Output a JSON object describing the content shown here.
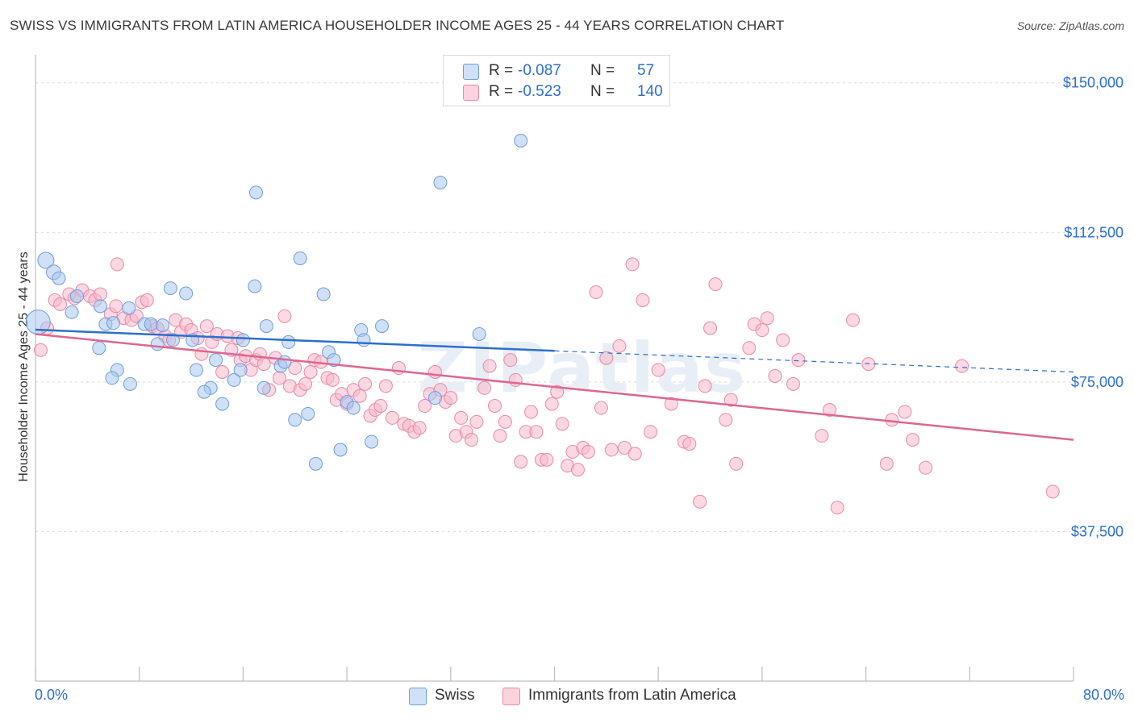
{
  "title": "SWISS VS IMMIGRANTS FROM LATIN AMERICA HOUSEHOLDER INCOME AGES 25 - 44 YEARS CORRELATION CHART",
  "source": "Source: ZipAtlas.com",
  "watermark": "ZIPatlas",
  "legend": {
    "rows": [
      {
        "r_label": "R =",
        "r_value": "-0.087",
        "n_label": "N =",
        "n_value": "57",
        "color": "#a9c7ef"
      },
      {
        "r_label": "R =",
        "r_value": "-0.523",
        "n_label": "N =",
        "n_value": "140",
        "color": "#f7b8cb"
      }
    ]
  },
  "bottom_legend": [
    "Swiss",
    "Immigrants from Latin America"
  ],
  "colors": {
    "swiss_fill": "#a9c7ef",
    "swiss_stroke": "#6c9fdc",
    "swiss_line": "#2c6fd1",
    "latin_fill": "#f7b8cb",
    "latin_stroke": "#e98aa8",
    "latin_line": "#e06690",
    "tick_label": "#2c6fd1",
    "grid": "#d9d9d9"
  },
  "chart_data": {
    "type": "scatter",
    "title": "SWISS VS IMMIGRANTS FROM LATIN AMERICA HOUSEHOLDER INCOME AGES 25 - 44 YEARS CORRELATION CHART",
    "xlabel": "",
    "ylabel": "Householder Income Ages 25 - 44 years",
    "xlim": [
      0,
      80
    ],
    "ylim": [
      0,
      155000
    ],
    "x_tick_labels": [
      "0.0%",
      "80.0%"
    ],
    "y_ticks": [
      37500,
      75000,
      112500,
      150000
    ],
    "y_tick_labels": [
      "$37,500",
      "$75,000",
      "$112,500",
      "$150,000"
    ],
    "grid": "horizontal dashed",
    "series": [
      {
        "name": "Swiss",
        "r": -0.087,
        "n": 57,
        "trend": {
          "x0": 0,
          "y0": 88100,
          "x1": 40,
          "y1": 82800,
          "dash_to_x": 80,
          "dash_to_y": 77500
        },
        "points": [
          [
            0.2,
            90000,
            28
          ],
          [
            0.8,
            105500,
            18
          ],
          [
            1.4,
            102500,
            16
          ],
          [
            1.8,
            101000,
            14
          ],
          [
            3.2,
            96500,
            14
          ],
          [
            2.8,
            92500,
            14
          ],
          [
            5.0,
            94000,
            14
          ],
          [
            7.2,
            93500,
            14
          ],
          [
            5.4,
            89500,
            14
          ],
          [
            6.0,
            89800,
            14
          ],
          [
            8.4,
            89500,
            14
          ],
          [
            8.9,
            89500,
            14
          ],
          [
            9.8,
            89200,
            14
          ],
          [
            10.4,
            98500,
            14
          ],
          [
            11.6,
            97200,
            14
          ],
          [
            4.9,
            83500,
            14
          ],
          [
            9.4,
            84500,
            14
          ],
          [
            10.6,
            85500,
            14
          ],
          [
            12.1,
            85500,
            14
          ],
          [
            6.3,
            78000,
            14
          ],
          [
            5.9,
            76000,
            14
          ],
          [
            7.3,
            74500,
            14
          ],
          [
            12.4,
            78000,
            14
          ],
          [
            13.5,
            73500,
            14
          ],
          [
            13.0,
            72500,
            14
          ],
          [
            13.9,
            80500,
            14
          ],
          [
            15.3,
            75500,
            14
          ],
          [
            14.4,
            69500,
            14
          ],
          [
            15.8,
            78000,
            14
          ],
          [
            16.0,
            85500,
            14
          ],
          [
            17.0,
            122500,
            14
          ],
          [
            16.9,
            99000,
            14
          ],
          [
            17.8,
            89000,
            14
          ],
          [
            17.6,
            73500,
            14
          ],
          [
            18.9,
            79000,
            14
          ],
          [
            19.2,
            80000,
            14
          ],
          [
            19.5,
            85000,
            14
          ],
          [
            20.4,
            106000,
            14
          ],
          [
            20.0,
            65500,
            14
          ],
          [
            21.0,
            67000,
            14
          ],
          [
            21.6,
            54500,
            14
          ],
          [
            22.2,
            97000,
            14
          ],
          [
            22.6,
            82500,
            14
          ],
          [
            23.0,
            80500,
            14
          ],
          [
            23.5,
            58000,
            14
          ],
          [
            24.0,
            70000,
            14
          ],
          [
            24.5,
            68500,
            14
          ],
          [
            25.1,
            88000,
            14
          ],
          [
            25.3,
            85500,
            14
          ],
          [
            25.9,
            60000,
            14
          ],
          [
            26.7,
            89000,
            14
          ],
          [
            30.8,
            71000,
            14
          ],
          [
            31.2,
            125000,
            14
          ],
          [
            34.2,
            87000,
            14
          ],
          [
            37.4,
            135500,
            14
          ]
        ]
      },
      {
        "name": "Immigrants from Latin America",
        "r": -0.523,
        "n": 140,
        "trend": {
          "x0": 0,
          "y0": 87000,
          "x1": 80,
          "y1": 60500
        },
        "points": [
          [
            0.4,
            83000,
            14
          ],
          [
            0.9,
            88500,
            14
          ],
          [
            1.5,
            95500,
            14
          ],
          [
            1.9,
            94500,
            14
          ],
          [
            2.6,
            97000,
            14
          ],
          [
            3.0,
            96000,
            14
          ],
          [
            3.6,
            98000,
            14
          ],
          [
            4.2,
            96500,
            14
          ],
          [
            4.6,
            95500,
            14
          ],
          [
            5.0,
            97000,
            14
          ],
          [
            5.8,
            92000,
            14
          ],
          [
            6.2,
            94000,
            14
          ],
          [
            6.3,
            104500,
            14
          ],
          [
            6.8,
            91000,
            14
          ],
          [
            7.4,
            90500,
            14
          ],
          [
            7.8,
            91500,
            14
          ],
          [
            8.2,
            95000,
            14
          ],
          [
            8.6,
            95500,
            14
          ],
          [
            9.0,
            89000,
            14
          ],
          [
            9.4,
            88500,
            14
          ],
          [
            10.0,
            86500,
            14
          ],
          [
            10.3,
            85500,
            14
          ],
          [
            10.8,
            90500,
            14
          ],
          [
            11.2,
            87500,
            14
          ],
          [
            11.6,
            89500,
            14
          ],
          [
            12.0,
            88000,
            14
          ],
          [
            12.5,
            86000,
            14
          ],
          [
            12.8,
            82000,
            14
          ],
          [
            13.2,
            89000,
            14
          ],
          [
            13.6,
            85000,
            14
          ],
          [
            14.0,
            87000,
            14
          ],
          [
            14.4,
            77500,
            14
          ],
          [
            14.8,
            86500,
            14
          ],
          [
            15.1,
            83000,
            14
          ],
          [
            15.6,
            86000,
            14
          ],
          [
            15.8,
            80500,
            14
          ],
          [
            16.2,
            81500,
            14
          ],
          [
            16.6,
            78000,
            14
          ],
          [
            17.0,
            80500,
            14
          ],
          [
            17.3,
            82000,
            14
          ],
          [
            17.6,
            79500,
            14
          ],
          [
            18.0,
            73000,
            14
          ],
          [
            18.5,
            81000,
            14
          ],
          [
            18.8,
            76000,
            14
          ],
          [
            19.2,
            91500,
            14
          ],
          [
            19.6,
            74000,
            14
          ],
          [
            20.0,
            78500,
            14
          ],
          [
            20.4,
            73000,
            14
          ],
          [
            20.8,
            74500,
            14
          ],
          [
            21.2,
            77500,
            14
          ],
          [
            21.5,
            80500,
            14
          ],
          [
            22.0,
            80000,
            14
          ],
          [
            22.5,
            76000,
            14
          ],
          [
            22.9,
            75500,
            14
          ],
          [
            23.2,
            70500,
            14
          ],
          [
            23.6,
            72000,
            14
          ],
          [
            24.0,
            69500,
            14
          ],
          [
            24.5,
            73000,
            14
          ],
          [
            25.0,
            71500,
            14
          ],
          [
            25.4,
            74500,
            14
          ],
          [
            25.8,
            66500,
            14
          ],
          [
            26.2,
            68000,
            14
          ],
          [
            26.6,
            69000,
            14
          ],
          [
            27.0,
            74000,
            14
          ],
          [
            27.5,
            66000,
            14
          ],
          [
            28.0,
            78500,
            14
          ],
          [
            28.4,
            64500,
            14
          ],
          [
            28.8,
            64000,
            14
          ],
          [
            29.2,
            62500,
            14
          ],
          [
            29.6,
            63500,
            14
          ],
          [
            30.0,
            69000,
            14
          ],
          [
            30.4,
            72000,
            14
          ],
          [
            30.8,
            77500,
            14
          ],
          [
            31.2,
            73000,
            14
          ],
          [
            31.6,
            70000,
            14
          ],
          [
            32.0,
            71000,
            14
          ],
          [
            32.4,
            61500,
            14
          ],
          [
            32.8,
            66000,
            14
          ],
          [
            33.2,
            62500,
            14
          ],
          [
            33.6,
            60500,
            14
          ],
          [
            34.0,
            65000,
            14
          ],
          [
            34.6,
            73500,
            14
          ],
          [
            35.0,
            79000,
            14
          ],
          [
            35.4,
            69000,
            14
          ],
          [
            35.8,
            61500,
            14
          ],
          [
            36.2,
            65000,
            14
          ],
          [
            36.6,
            80500,
            14
          ],
          [
            37.0,
            75500,
            14
          ],
          [
            37.4,
            55000,
            14
          ],
          [
            37.8,
            62500,
            14
          ],
          [
            38.2,
            67500,
            14
          ],
          [
            38.6,
            62500,
            14
          ],
          [
            39.0,
            55500,
            14
          ],
          [
            39.4,
            55500,
            14
          ],
          [
            39.8,
            69500,
            14
          ],
          [
            40.2,
            72500,
            14
          ],
          [
            40.6,
            64500,
            14
          ],
          [
            41.0,
            54000,
            14
          ],
          [
            41.4,
            57500,
            14
          ],
          [
            41.8,
            53000,
            14
          ],
          [
            42.2,
            58500,
            14
          ],
          [
            42.6,
            57500,
            14
          ],
          [
            43.2,
            97500,
            14
          ],
          [
            43.6,
            68500,
            14
          ],
          [
            44.0,
            81000,
            14
          ],
          [
            44.4,
            58000,
            14
          ],
          [
            45.0,
            84000,
            14
          ],
          [
            45.4,
            58500,
            14
          ],
          [
            46.0,
            104500,
            14
          ],
          [
            46.2,
            57000,
            14
          ],
          [
            46.8,
            95500,
            14
          ],
          [
            47.4,
            62500,
            14
          ],
          [
            48.0,
            78000,
            14
          ],
          [
            49.0,
            69500,
            14
          ],
          [
            50.0,
            60000,
            14
          ],
          [
            50.4,
            59500,
            14
          ],
          [
            51.2,
            45000,
            14
          ],
          [
            51.6,
            74000,
            14
          ],
          [
            52.0,
            88500,
            14
          ],
          [
            52.4,
            99500,
            14
          ],
          [
            53.2,
            65500,
            14
          ],
          [
            53.6,
            70500,
            14
          ],
          [
            54.0,
            54500,
            14
          ],
          [
            55.0,
            83500,
            14
          ],
          [
            55.4,
            89500,
            14
          ],
          [
            56.0,
            88000,
            14
          ],
          [
            56.4,
            91000,
            14
          ],
          [
            57.0,
            76500,
            14
          ],
          [
            57.6,
            85500,
            14
          ],
          [
            58.4,
            74500,
            14
          ],
          [
            58.8,
            80500,
            14
          ],
          [
            60.6,
            61500,
            14
          ],
          [
            61.2,
            68000,
            14
          ],
          [
            61.8,
            43500,
            14
          ],
          [
            63.0,
            90500,
            14
          ],
          [
            64.2,
            79500,
            14
          ],
          [
            65.6,
            54500,
            14
          ],
          [
            66.0,
            65500,
            14
          ],
          [
            67.0,
            67500,
            14
          ],
          [
            67.6,
            60500,
            14
          ],
          [
            68.6,
            53500,
            14
          ],
          [
            71.4,
            79000,
            14
          ],
          [
            78.4,
            47500,
            14
          ]
        ]
      }
    ]
  }
}
